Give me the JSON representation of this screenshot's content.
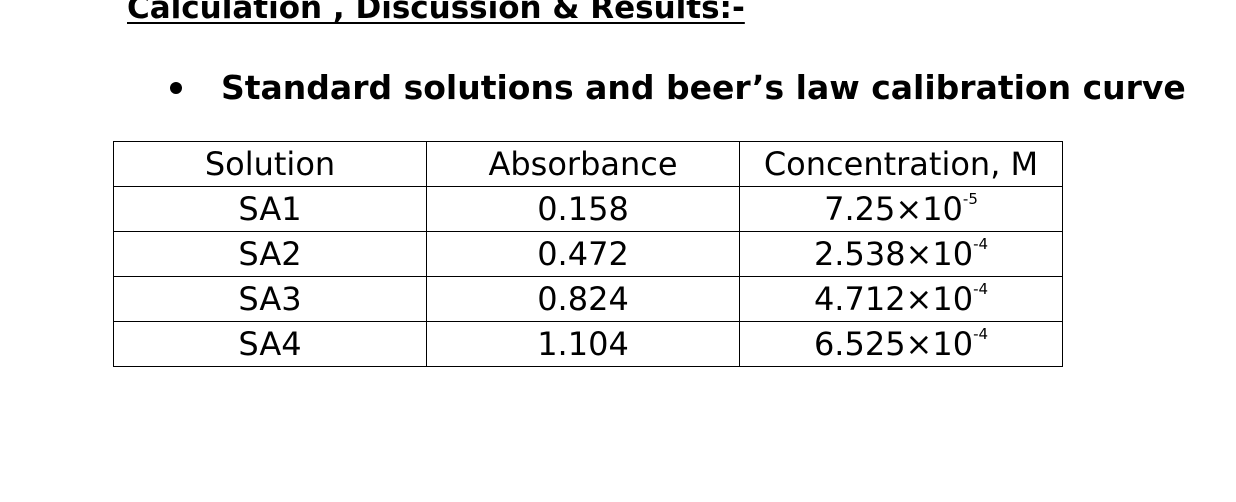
{
  "heading": "Calculation , Discussion & Results:-",
  "bullet_text": "Standard solutions and beer’s law calibration curve",
  "table": {
    "headers": [
      "Solution",
      "Absorbance",
      "Concentration, M"
    ],
    "rows": [
      {
        "solution": "SA1",
        "absorbance": "0.158",
        "conc_mantissa": "7.25×10",
        "conc_exp": "-5"
      },
      {
        "solution": "SA2",
        "absorbance": "0.472",
        "conc_mantissa": "2.538×10",
        "conc_exp": "-4"
      },
      {
        "solution": "SA3",
        "absorbance": "0.824",
        "conc_mantissa": "4.712×10",
        "conc_exp": "-4"
      },
      {
        "solution": "SA4",
        "absorbance": "1.104",
        "conc_mantissa": "6.525×10",
        "conc_exp": "-4"
      }
    ]
  }
}
